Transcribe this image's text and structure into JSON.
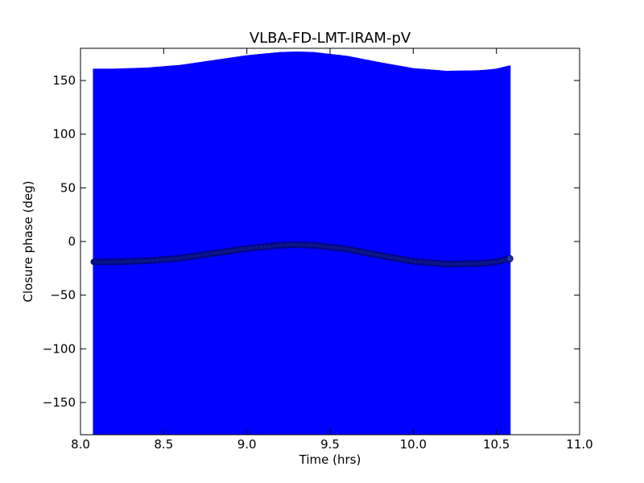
{
  "chart_data": {
    "type": "scatter",
    "title": "VLBA-FD-LMT-IRAM-pV",
    "xlabel": "Time (hrs)",
    "ylabel": "Closure phase (deg)",
    "xlim": [
      8.0,
      11.0
    ],
    "ylim": [
      -180,
      180
    ],
    "x_ticks": [
      8.0,
      8.5,
      9.0,
      9.5,
      10.0,
      10.5,
      11.0
    ],
    "x_tick_labels": [
      "8.0",
      "8.5",
      "9.0",
      "9.5",
      "10.0",
      "10.5",
      "11.0"
    ],
    "y_ticks": [
      150,
      100,
      50,
      0,
      -50,
      -100,
      -150
    ],
    "y_tick_labels": [
      "150",
      "100",
      "50",
      "0",
      "−50",
      "−100",
      "−150"
    ],
    "grid": false,
    "colors": {
      "errorbar": "#0000ff",
      "marker_edge": "#000080",
      "marker_fill": "#1f3c9a"
    },
    "errorbar_halfwidth_deg": 180,
    "series": [
      {
        "x": [
          8.08,
          8.2,
          8.4,
          8.6,
          8.8,
          9.0,
          9.2,
          9.3,
          9.4,
          9.6,
          9.8,
          10.0,
          10.2,
          10.4,
          10.5,
          10.58
        ],
        "y": [
          -19,
          -19,
          -18,
          -15.5,
          -11,
          -6.5,
          -3.5,
          -3,
          -3.5,
          -7,
          -13,
          -18.5,
          -21,
          -20.5,
          -19,
          -16
        ]
      }
    ]
  }
}
